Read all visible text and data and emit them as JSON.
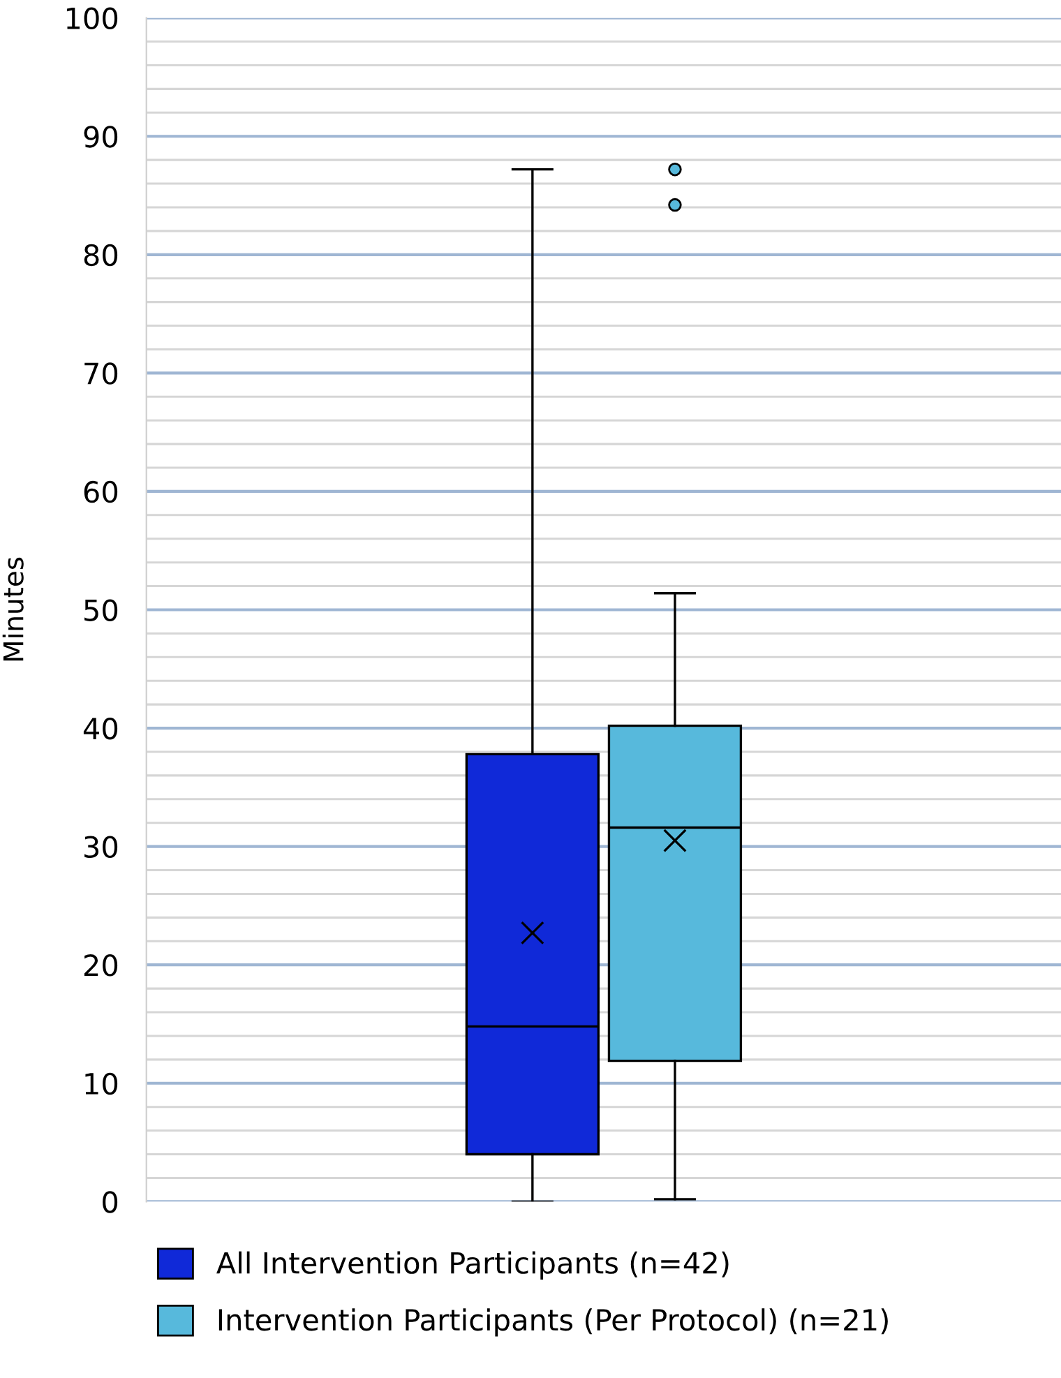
{
  "chart_data": {
    "type": "box",
    "ylabel": "Minutes",
    "categories": [
      null
    ],
    "series": [
      {
        "name": "All Intervention Participants (n=42)",
        "color": "#1029d8",
        "boxes": [
          {
            "low": 0,
            "q1": 4,
            "median": 14.8,
            "q3": 37.8,
            "high": 87.2,
            "mean": 22.7
          }
        ]
      },
      {
        "name": "Intervention Participants (Per Protocol) (n=21)",
        "color": "#57b9dc",
        "boxes": [
          {
            "low": 0.2,
            "q1": 11.9,
            "median": 31.6,
            "q3": 40.2,
            "high": 51.4,
            "mean": 30.5,
            "outliers": [
              84.2,
              87.2
            ]
          }
        ]
      }
    ],
    "ylim": [
      0,
      100
    ],
    "yticks": [
      0,
      {
        "value": 2,
        "label": null
      },
      {
        "value": 4,
        "label": null
      },
      {
        "value": 6,
        "label": null
      },
      {
        "value": 8,
        "label": null
      },
      10,
      {
        "value": 12,
        "label": null
      },
      {
        "value": 14,
        "label": null
      },
      {
        "value": 16,
        "label": null
      },
      {
        "value": 18,
        "label": null
      },
      20,
      {
        "value": 22,
        "label": null
      },
      {
        "value": 24,
        "label": null
      },
      {
        "value": 26,
        "label": null
      },
      {
        "value": 28,
        "label": null
      },
      30,
      {
        "value": 32,
        "label": null
      },
      {
        "value": 34,
        "label": null
      },
      {
        "value": 36,
        "label": null
      },
      {
        "value": 38,
        "label": null
      },
      40,
      {
        "value": 42,
        "label": null
      },
      {
        "value": 44,
        "label": null
      },
      {
        "value": 46,
        "label": null
      },
      {
        "value": 48,
        "label": null
      },
      50,
      {
        "value": 52,
        "label": null
      },
      {
        "value": 54,
        "label": null
      },
      {
        "value": 56,
        "label": null
      },
      {
        "value": 58,
        "label": null
      },
      60,
      {
        "value": 62,
        "label": null
      },
      {
        "value": 64,
        "label": null
      },
      {
        "value": 66,
        "label": null
      },
      {
        "value": 68,
        "label": null
      },
      70,
      {
        "value": 72,
        "label": null
      },
      {
        "value": 74,
        "label": null
      },
      {
        "value": 76,
        "label": null
      },
      {
        "value": 78,
        "label": null
      },
      80,
      {
        "value": 82,
        "label": null
      },
      {
        "value": 84,
        "label": null
      },
      {
        "value": 86,
        "label": null
      },
      {
        "value": 88,
        "label": null
      },
      90,
      {
        "value": 92,
        "label": null
      },
      {
        "value": 94,
        "label": null
      },
      {
        "value": 96,
        "label": null
      },
      {
        "value": 98,
        "label": null
      },
      100
    ],
    "grid": "y",
    "legend": "bottom",
    "marker": "cross"
  }
}
